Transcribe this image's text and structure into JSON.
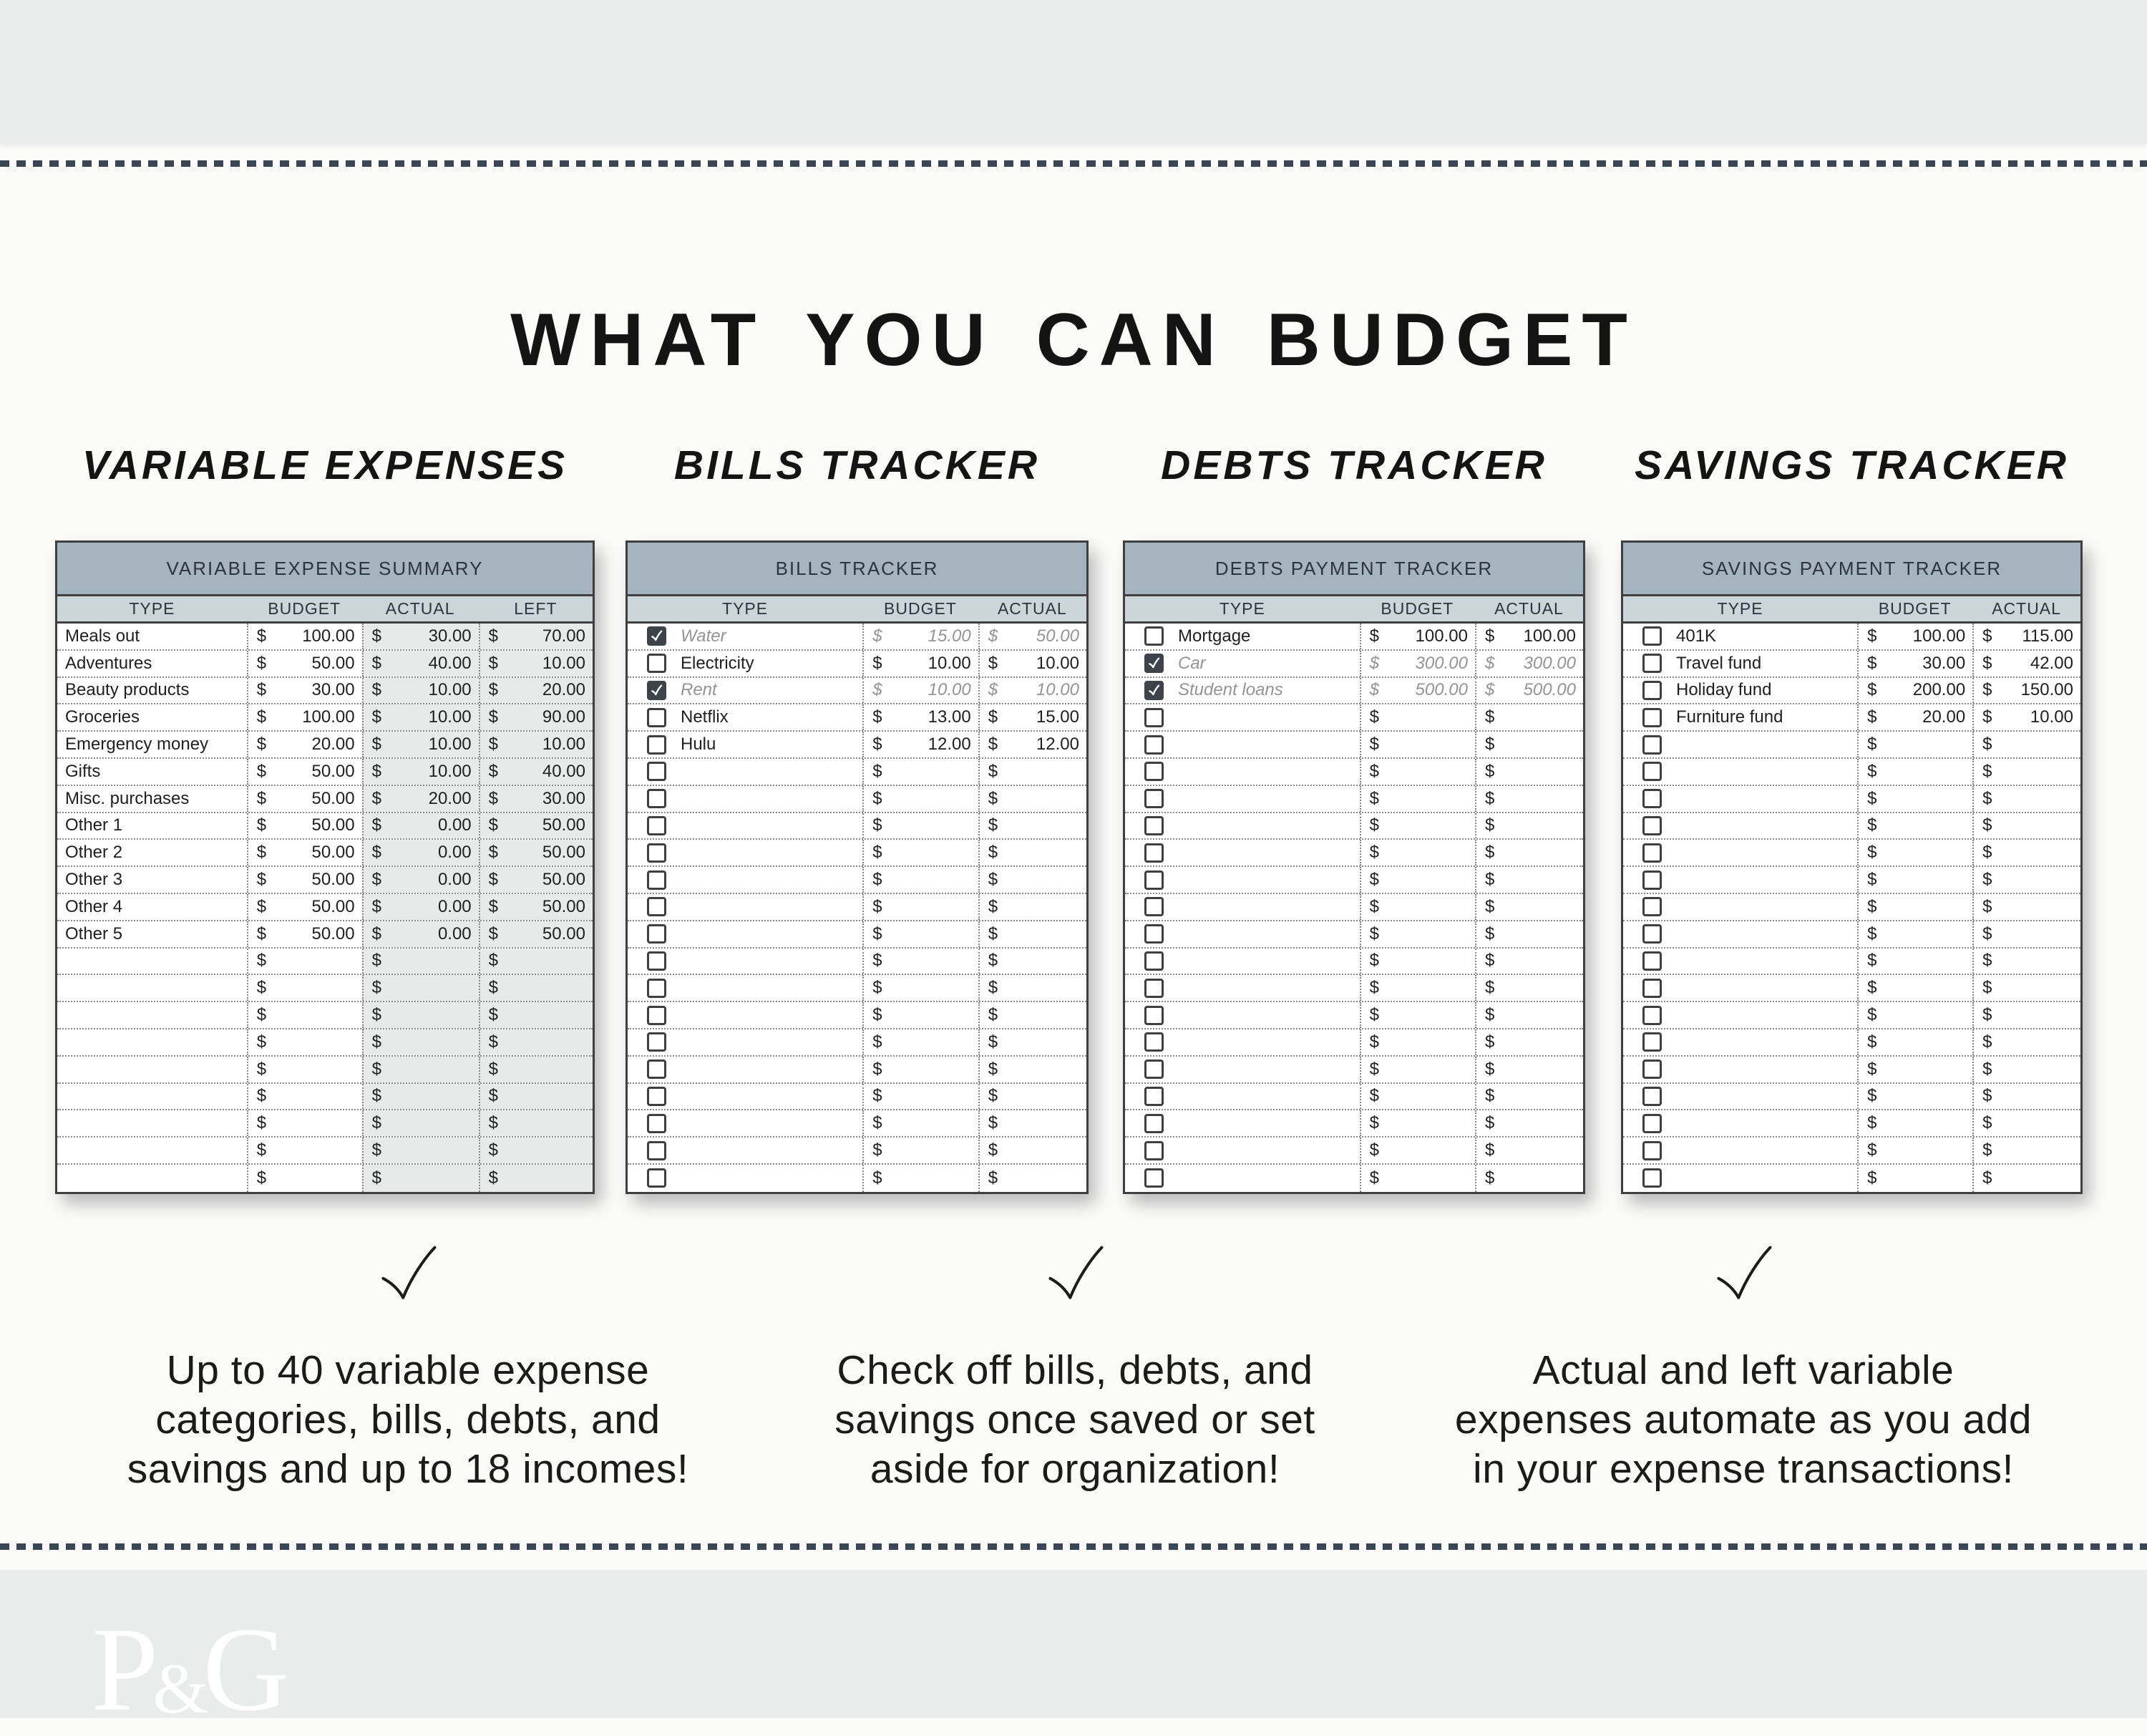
{
  "page": {
    "title": "WHAT YOU CAN BUDGET",
    "footer_logo": "P&G"
  },
  "colors": {
    "band_gray": "#eaebeb",
    "dash_navy": "#3a4653",
    "table_title_band": "#a5b4be",
    "table_column_header": "#ccd5da",
    "shaded_column": "#e8eaea",
    "checkbox_checked": "#3e434b",
    "checked_text_gray": "#949494"
  },
  "sections": [
    {
      "label": "VARIABLE EXPENSES"
    },
    {
      "label": "BILLS TRACKER"
    },
    {
      "label": "DEBTS TRACKER"
    },
    {
      "label": "SAVINGS TRACKER"
    }
  ],
  "tables": [
    {
      "title": "VARIABLE EXPENSE SUMMARY",
      "columns": [
        "TYPE",
        "BUDGET",
        "ACTUAL",
        "LEFT"
      ],
      "currency": "$",
      "has_checkbox": false,
      "rows": [
        {
          "type": "Meals out",
          "values": [
            "100.00",
            "30.00",
            "70.00"
          ]
        },
        {
          "type": "Adventures",
          "values": [
            "50.00",
            "40.00",
            "10.00"
          ]
        },
        {
          "type": "Beauty products",
          "values": [
            "30.00",
            "10.00",
            "20.00"
          ]
        },
        {
          "type": "Groceries",
          "values": [
            "100.00",
            "10.00",
            "90.00"
          ]
        },
        {
          "type": "Emergency money",
          "values": [
            "20.00",
            "10.00",
            "10.00"
          ]
        },
        {
          "type": "Gifts",
          "values": [
            "50.00",
            "10.00",
            "40.00"
          ]
        },
        {
          "type": "Misc. purchases",
          "values": [
            "50.00",
            "20.00",
            "30.00"
          ]
        },
        {
          "type": "Other 1",
          "values": [
            "50.00",
            "0.00",
            "50.00"
          ]
        },
        {
          "type": "Other 2",
          "values": [
            "50.00",
            "0.00",
            "50.00"
          ]
        },
        {
          "type": "Other 3",
          "values": [
            "50.00",
            "0.00",
            "50.00"
          ]
        },
        {
          "type": "Other 4",
          "values": [
            "50.00",
            "0.00",
            "50.00"
          ]
        },
        {
          "type": "Other 5",
          "values": [
            "50.00",
            "0.00",
            "50.00"
          ]
        }
      ],
      "empty_rows": 9
    },
    {
      "title": "BILLS TRACKER",
      "columns": [
        "TYPE",
        "BUDGET",
        "ACTUAL"
      ],
      "currency": "$",
      "has_checkbox": true,
      "rows": [
        {
          "type": "Water",
          "values": [
            "15.00",
            "50.00"
          ],
          "checked": true
        },
        {
          "type": "Electricity",
          "values": [
            "10.00",
            "10.00"
          ],
          "checked": false
        },
        {
          "type": "Rent",
          "values": [
            "10.00",
            "10.00"
          ],
          "checked": true
        },
        {
          "type": "Netflix",
          "values": [
            "13.00",
            "15.00"
          ],
          "checked": false
        },
        {
          "type": "Hulu",
          "values": [
            "12.00",
            "12.00"
          ],
          "checked": false
        }
      ],
      "empty_rows": 16
    },
    {
      "title": "DEBTS PAYMENT TRACKER",
      "columns": [
        "TYPE",
        "BUDGET",
        "ACTUAL"
      ],
      "currency": "$",
      "has_checkbox": true,
      "rows": [
        {
          "type": "Mortgage",
          "values": [
            "100.00",
            "100.00"
          ],
          "checked": false
        },
        {
          "type": "Car",
          "values": [
            "300.00",
            "300.00"
          ],
          "checked": true
        },
        {
          "type": "Student loans",
          "values": [
            "500.00",
            "500.00"
          ],
          "checked": true
        }
      ],
      "empty_rows": 18
    },
    {
      "title": "SAVINGS PAYMENT TRACKER",
      "columns": [
        "TYPE",
        "BUDGET",
        "ACTUAL"
      ],
      "currency": "$",
      "has_checkbox": true,
      "rows": [
        {
          "type": "401K",
          "values": [
            "100.00",
            "115.00"
          ],
          "checked": false
        },
        {
          "type": "Travel fund",
          "values": [
            "30.00",
            "42.00"
          ],
          "checked": false
        },
        {
          "type": "Holiday fund",
          "values": [
            "200.00",
            "150.00"
          ],
          "checked": false
        },
        {
          "type": "Furniture fund",
          "values": [
            "20.00",
            "10.00"
          ],
          "checked": false
        }
      ],
      "empty_rows": 17
    }
  ],
  "benefits": [
    {
      "icon": "check",
      "lines": [
        "Up to 40 variable expense",
        "categories, bills, debts, and",
        "savings and up to 18 incomes!"
      ]
    },
    {
      "icon": "check",
      "lines": [
        "Check off bills, debts, and",
        "savings once saved or set",
        "aside for organization!"
      ]
    },
    {
      "icon": "check",
      "lines": [
        "Actual and left variable",
        "expenses automate as you add",
        "in your expense transactions!"
      ]
    }
  ]
}
